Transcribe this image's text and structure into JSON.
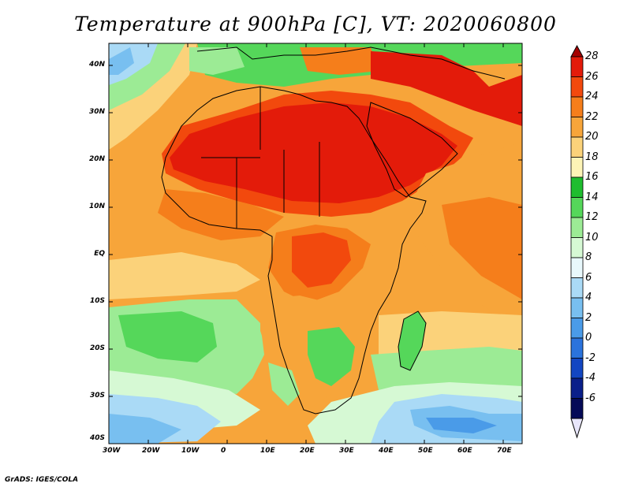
{
  "title": "Temperature at 900hPa [C], VT: 2020060800",
  "credit": "GrADS: IGES/COLA",
  "map": {
    "lat_labels": [
      "40N",
      "30N",
      "20N",
      "10N",
      "EQ",
      "10S",
      "20S",
      "30S",
      "40S"
    ],
    "lon_labels": [
      "30W",
      "20W",
      "10W",
      "0",
      "10E",
      "20E",
      "30E",
      "40E",
      "50E",
      "60E",
      "70E"
    ]
  },
  "colorbar": {
    "labels": [
      "28",
      "26",
      "24",
      "22",
      "20",
      "18",
      "16",
      "14",
      "12",
      "10",
      "8",
      "6",
      "4",
      "2",
      "0",
      "-2",
      "-4",
      "-6"
    ],
    "colors": [
      "#a50000",
      "#e31b0a",
      "#f2490d",
      "#f57e1b",
      "#f7a53a",
      "#fbd27a",
      "#fdf4b6",
      "#1fbd2f",
      "#55d75a",
      "#9ceb95",
      "#d6f9d4",
      "#e8f8fc",
      "#aadaf6",
      "#78bff0",
      "#4a9be8",
      "#2b73dc",
      "#1346c2",
      "#0a1f8a",
      "#050a57",
      "#e8e6fb"
    ]
  }
}
